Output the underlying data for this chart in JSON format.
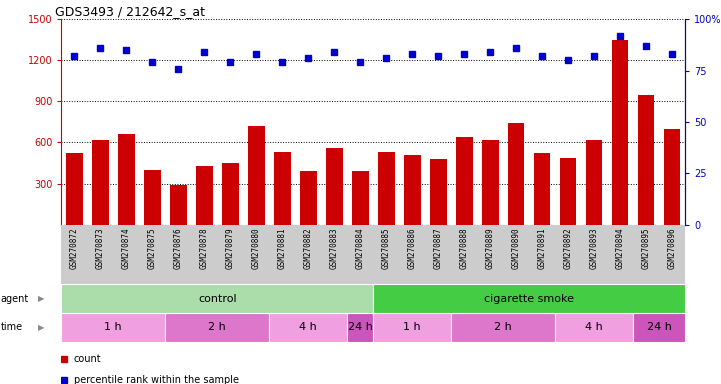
{
  "title": "GDS3493 / 212642_s_at",
  "samples": [
    "GSM270872",
    "GSM270873",
    "GSM270874",
    "GSM270875",
    "GSM270876",
    "GSM270878",
    "GSM270879",
    "GSM270880",
    "GSM270881",
    "GSM270882",
    "GSM270883",
    "GSM270884",
    "GSM270885",
    "GSM270886",
    "GSM270887",
    "GSM270888",
    "GSM270889",
    "GSM270890",
    "GSM270891",
    "GSM270892",
    "GSM270893",
    "GSM270894",
    "GSM270895",
    "GSM270896"
  ],
  "counts": [
    520,
    620,
    660,
    400,
    290,
    430,
    450,
    720,
    530,
    390,
    560,
    390,
    530,
    510,
    480,
    640,
    620,
    740,
    520,
    490,
    620,
    1350,
    950,
    700
  ],
  "percentiles": [
    82,
    86,
    85,
    79,
    76,
    84,
    79,
    83,
    79,
    81,
    84,
    79,
    81,
    83,
    82,
    83,
    84,
    86,
    82,
    80,
    82,
    92,
    87,
    83
  ],
  "ylim_left": [
    0,
    1500
  ],
  "ylim_right": [
    0,
    100
  ],
  "yticks_left": [
    300,
    600,
    900,
    1200,
    1500
  ],
  "yticks_right": [
    0,
    25,
    50,
    75,
    100
  ],
  "ytick_labels_left": [
    "300",
    "600",
    "900",
    "1200",
    "1500"
  ],
  "ytick_labels_right": [
    "0",
    "25",
    "50",
    "75",
    "100%"
  ],
  "bar_color": "#cc0000",
  "dot_color": "#0000cc",
  "grid_color": "#000000",
  "agent_groups": [
    {
      "label": "control",
      "start": 0,
      "end": 11,
      "color": "#aaddaa"
    },
    {
      "label": "cigarette smoke",
      "start": 12,
      "end": 23,
      "color": "#44cc44"
    }
  ],
  "time_groups": [
    {
      "label": "1 h",
      "start": 0,
      "end": 3,
      "color": "#f0a0e0"
    },
    {
      "label": "2 h",
      "start": 4,
      "end": 7,
      "color": "#dd77cc"
    },
    {
      "label": "4 h",
      "start": 8,
      "end": 10,
      "color": "#f0a0e0"
    },
    {
      "label": "24 h",
      "start": 11,
      "end": 11,
      "color": "#cc55bb"
    },
    {
      "label": "1 h",
      "start": 12,
      "end": 14,
      "color": "#f0a0e0"
    },
    {
      "label": "2 h",
      "start": 15,
      "end": 18,
      "color": "#dd77cc"
    },
    {
      "label": "4 h",
      "start": 19,
      "end": 21,
      "color": "#f0a0e0"
    },
    {
      "label": "24 h",
      "start": 22,
      "end": 23,
      "color": "#cc55bb"
    }
  ],
  "legend_items": [
    {
      "label": "count",
      "color": "#cc0000"
    },
    {
      "label": "percentile rank within the sample",
      "color": "#0000cc"
    }
  ],
  "bg_color": "#ffffff",
  "tick_label_color_left": "#cc0000",
  "tick_label_color_right": "#0000cc",
  "xtick_bg_color": "#cccccc"
}
